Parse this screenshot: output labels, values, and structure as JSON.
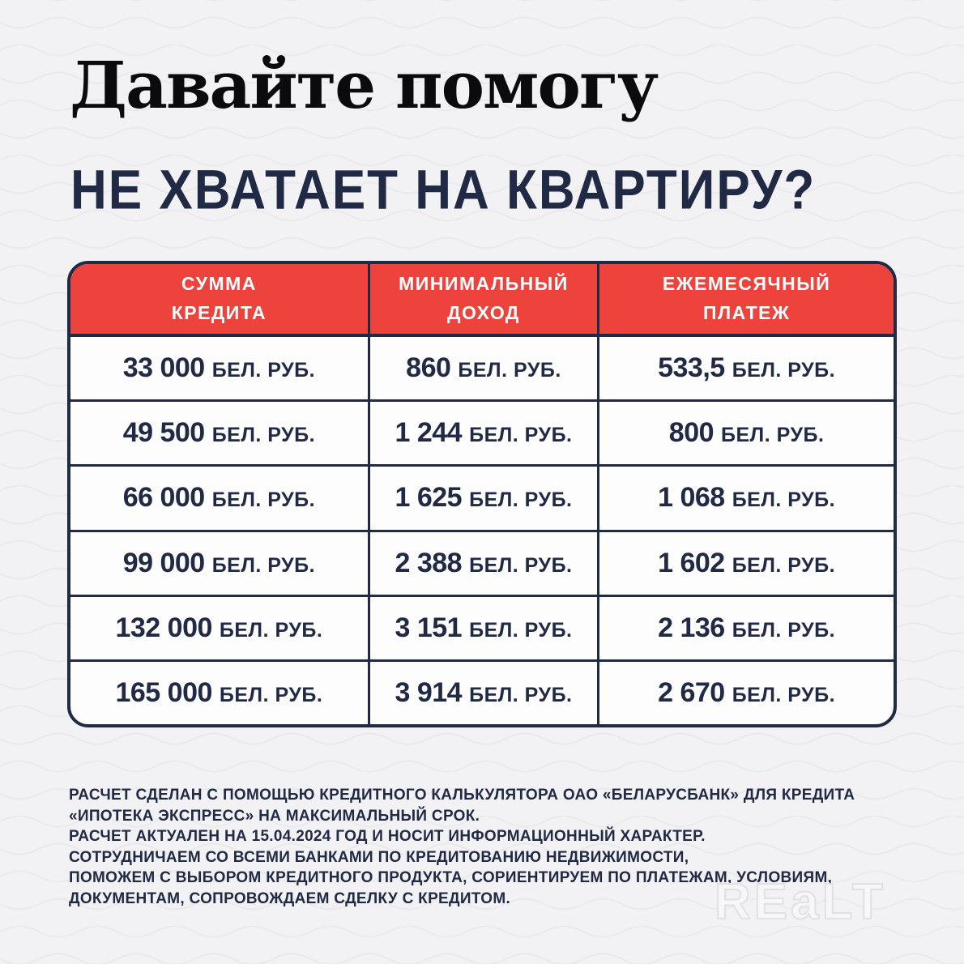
{
  "colors": {
    "accent_red": "#EE423C",
    "navy": "#212A44",
    "background": "#F2F2F4",
    "cell_white": "#FDFDFE",
    "watermark_gray": "#E1E1E5"
  },
  "header": {
    "title": "Давайте помогу",
    "subtitle": "НЕ ХВАТАЕТ НА КВАРТИРУ?"
  },
  "table": {
    "columns": [
      {
        "line1": "СУММА",
        "line2": "КРЕДИТА"
      },
      {
        "line1": "МИНИМАЛЬНЫЙ",
        "line2": "ДОХОД"
      },
      {
        "line1": "ЕЖЕМЕСЯЧНЫЙ",
        "line2": "ПЛАТЕЖ"
      }
    ],
    "unit": "БЕЛ. РУБ.",
    "rows": [
      {
        "credit": "33 000",
        "income": "860",
        "payment": "533,5"
      },
      {
        "credit": "49 500",
        "income": "1 244",
        "payment": "800"
      },
      {
        "credit": "66 000",
        "income": "1 625",
        "payment": "1 068"
      },
      {
        "credit": "99 000",
        "income": "2 388",
        "payment": "1 602"
      },
      {
        "credit": "132 000",
        "income": "3 151",
        "payment": "2 136"
      },
      {
        "credit": "165 000",
        "income": "3 914",
        "payment": "2 670"
      }
    ]
  },
  "chart_data": {
    "type": "table",
    "title": "НЕ ХВАТАЕТ НА КВАРТИРУ?",
    "columns": [
      "СУММА КРЕДИТА",
      "МИНИМАЛЬНЫЙ ДОХОД",
      "ЕЖЕМЕСЯЧНЫЙ ПЛАТЕЖ"
    ],
    "unit": "БЕЛ. РУБ.",
    "rows_numeric": [
      [
        33000,
        860,
        533.5
      ],
      [
        49500,
        1244,
        800
      ],
      [
        66000,
        1625,
        1068
      ],
      [
        99000,
        2388,
        1602
      ],
      [
        132000,
        3151,
        2136
      ],
      [
        165000,
        3914,
        2670
      ]
    ]
  },
  "footnote": {
    "lines": [
      "РАСЧЕТ СДЕЛАН С ПОМОЩЬЮ КРЕДИТНОГО КАЛЬКУЛЯТОРА ОАО «БЕЛАРУСБАНК» ДЛЯ КРЕДИТА",
      "«ИПОТЕКА ЭКСПРЕСС» НА МАКСИМАЛЬНЫЙ СРОК.",
      "РАСЧЕТ АКТУАЛЕН НА 15.04.2024 ГОД И НОСИТ ИНФОРМАЦИОННЫЙ ХАРАКТЕР.",
      "СОТРУДНИЧАЕМ СО ВСЕМИ БАНКАМИ ПО КРЕДИТОВАНИЮ НЕДВИЖИМОСТИ,",
      "ПОМОЖЕМ С ВЫБОРОМ КРЕДИТНОГО ПРОДУКТА, СОРИЕНТИРУЕМ ПО ПЛАТЕЖАМ, УСЛОВИЯМ,",
      "ДОКУМЕНТАМ, СОПРОВОЖДАЕМ СДЕЛКУ С КРЕДИТОМ."
    ]
  },
  "watermark": "REaLT"
}
